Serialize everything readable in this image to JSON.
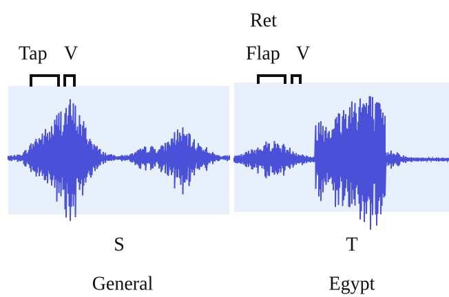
{
  "labels": {
    "ret": "Ret",
    "tap": "Tap",
    "v_left": "V",
    "flap": "Flap",
    "v_right": "V"
  },
  "panels": [
    {
      "letter": "S",
      "caption": "General"
    },
    {
      "letter": "T",
      "caption": "Egypt"
    }
  ]
}
